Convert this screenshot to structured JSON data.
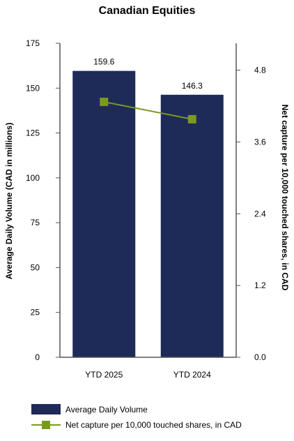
{
  "chart_data": {
    "type": "bar",
    "title": "Canadian Equities",
    "categories": [
      "YTD 2025",
      "YTD 2024"
    ],
    "series": [
      {
        "name": "Average Daily Volume",
        "type": "bar",
        "axis": "left",
        "values": [
          159.6,
          146.3
        ],
        "data_labels": [
          "159.6",
          "146.3"
        ]
      },
      {
        "name": "Net capture per 10,000 touched shares, in CAD",
        "type": "line",
        "axis": "right",
        "values": [
          4.27,
          3.98
        ]
      }
    ],
    "ylabel": "Average Daily Volume (CAD in millions)",
    "ylabel_right": "Net capture per 10,000 touched shares, in CAD",
    "ylim": [
      0,
      175
    ],
    "ylim_right": [
      0,
      5.25
    ],
    "yticks": [
      0,
      25,
      50,
      75,
      100,
      125,
      150,
      175
    ],
    "yticks_right": [
      "0.0",
      "1.2",
      "2.4",
      "3.6",
      "4.8"
    ],
    "grid": false,
    "legend_position": "bottom",
    "colors": {
      "bar": "#1e2a57",
      "line": "#7a9a1e",
      "axis": "#555555"
    }
  }
}
